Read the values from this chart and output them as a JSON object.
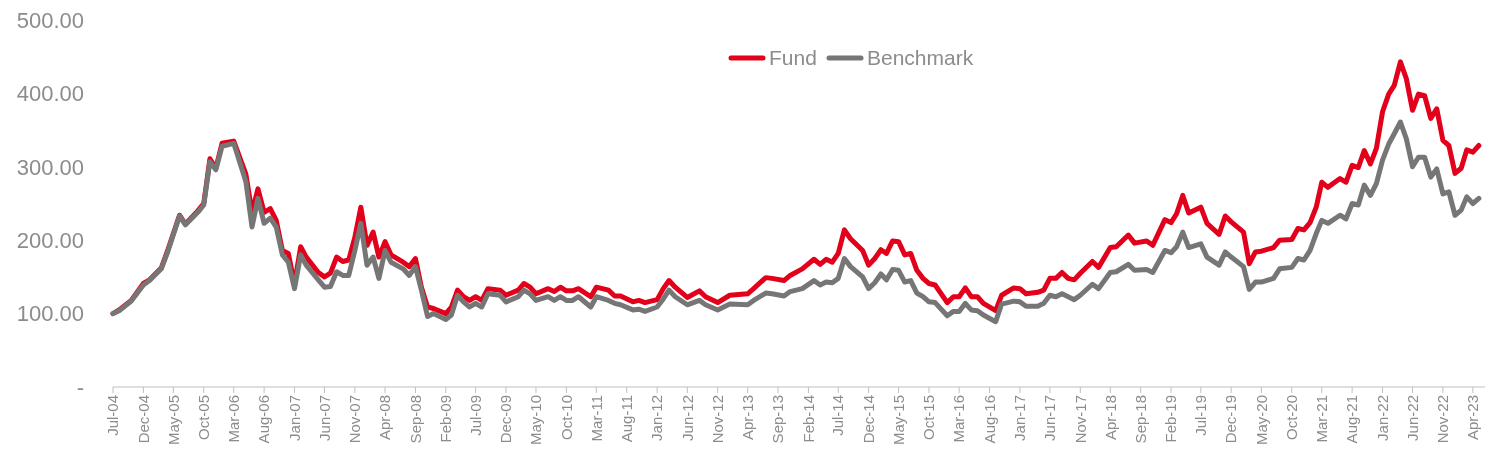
{
  "chart_data": {
    "type": "line",
    "x": [
      "2004-07",
      "2004-08",
      "2004-10",
      "2004-12",
      "2005-01",
      "2005-03",
      "2005-04",
      "2005-06",
      "2005-07",
      "2005-09",
      "2005-10",
      "2005-11",
      "2005-12",
      "2006-01",
      "2006-03",
      "2006-05",
      "2006-06",
      "2006-07",
      "2006-08",
      "2006-09",
      "2006-10",
      "2006-11",
      "2006-12",
      "2007-01",
      "2007-02",
      "2007-03",
      "2007-05",
      "2007-06",
      "2007-07",
      "2007-08",
      "2007-09",
      "2007-10",
      "2007-11",
      "2007-12",
      "2008-01",
      "2008-02",
      "2008-03",
      "2008-04",
      "2008-05",
      "2008-07",
      "2008-08",
      "2008-09",
      "2008-10",
      "2008-11",
      "2008-12",
      "2009-02",
      "2009-03",
      "2009-04",
      "2009-05",
      "2009-06",
      "2009-07",
      "2009-08",
      "2009-09",
      "2009-11",
      "2009-12",
      "2010-02",
      "2010-03",
      "2010-04",
      "2010-05",
      "2010-07",
      "2010-08",
      "2010-09",
      "2010-10",
      "2010-11",
      "2010-12",
      "2011-02",
      "2011-03",
      "2011-05",
      "2011-06",
      "2011-07",
      "2011-09",
      "2011-10",
      "2011-11",
      "2012-01",
      "2012-02",
      "2012-03",
      "2012-04",
      "2012-06",
      "2012-08",
      "2012-09",
      "2012-11",
      "2013-01",
      "2013-04",
      "2013-05",
      "2013-07",
      "2013-08",
      "2013-10",
      "2013-11",
      "2014-01",
      "2014-03",
      "2014-04",
      "2014-05",
      "2014-06",
      "2014-07",
      "2014-08",
      "2014-09",
      "2014-11",
      "2014-12",
      "2015-01",
      "2015-02",
      "2015-03",
      "2015-04",
      "2015-05",
      "2015-06",
      "2015-07",
      "2015-08",
      "2015-09",
      "2015-10",
      "2015-11",
      "2016-01",
      "2016-02",
      "2016-03",
      "2016-04",
      "2016-05",
      "2016-06",
      "2016-07",
      "2016-09",
      "2016-10",
      "2016-12",
      "2017-01",
      "2017-02",
      "2017-04",
      "2017-05",
      "2017-06",
      "2017-07",
      "2017-08",
      "2017-09",
      "2017-10",
      "2017-11",
      "2018-01",
      "2018-02",
      "2018-04",
      "2018-05",
      "2018-07",
      "2018-08",
      "2018-10",
      "2018-11",
      "2019-01",
      "2019-02",
      "2019-03",
      "2019-04",
      "2019-05",
      "2019-07",
      "2019-08",
      "2019-10",
      "2019-11",
      "2019-12",
      "2020-02",
      "2020-03",
      "2020-04",
      "2020-05",
      "2020-07",
      "2020-08",
      "2020-10",
      "2020-11",
      "2020-12",
      "2021-01",
      "2021-02",
      "2021-03",
      "2021-04",
      "2021-06",
      "2021-07",
      "2021-08",
      "2021-09",
      "2021-10",
      "2021-11",
      "2021-12",
      "2022-01",
      "2022-02",
      "2022-03",
      "2022-04",
      "2022-05",
      "2022-06",
      "2022-07",
      "2022-08",
      "2022-09",
      "2022-10",
      "2022-11",
      "2022-12",
      "2023-01",
      "2023-02",
      "2023-03",
      "2023-04",
      "2023-05"
    ],
    "series": [
      {
        "name": "Fund",
        "color": "#e2001a",
        "values": [
          100,
          105,
          118,
          141,
          146,
          162,
          185,
          234,
          222,
          240,
          250,
          311,
          298,
          332,
          335,
          290,
          238,
          270,
          238,
          243,
          227,
          186,
          182,
          140,
          191,
          177,
          156,
          150,
          155,
          177,
          171,
          173,
          204,
          245,
          193,
          211,
          177,
          198,
          180,
          170,
          164,
          175,
          136,
          109,
          107,
          100,
          109,
          132,
          123,
          118,
          123,
          118,
          134,
          132,
          125,
          132,
          141,
          136,
          127,
          134,
          130,
          136,
          131,
          131,
          134,
          123,
          136,
          132,
          124,
          124,
          116,
          118,
          115,
          119,
          134,
          145,
          136,
          122,
          131,
          123,
          115,
          125,
          127,
          134,
          149,
          148,
          145,
          152,
          161,
          174,
          167,
          174,
          170,
          182,
          214,
          202,
          186,
          166,
          175,
          187,
          182,
          199,
          198,
          180,
          182,
          159,
          148,
          141,
          139,
          115,
          123,
          123,
          135,
          123,
          123,
          114,
          104,
          125,
          135,
          134,
          127,
          129,
          132,
          148,
          148,
          156,
          148,
          146,
          155,
          171,
          163,
          190,
          191,
          207,
          196,
          199,
          193,
          228,
          224,
          236,
          261,
          237,
          245,
          223,
          208,
          233,
          225,
          211,
          168,
          184,
          185,
          190,
          200,
          201,
          216,
          214,
          224,
          245,
          279,
          272,
          284,
          279,
          302,
          299,
          322,
          304,
          325,
          375,
          399,
          411,
          443,
          420,
          377,
          399,
          397,
          366,
          379,
          336,
          329,
          291,
          298,
          323,
          320,
          329
        ]
      },
      {
        "name": "Benchmark",
        "color": "#767676",
        "values": [
          100,
          104,
          117,
          139,
          145,
          161,
          183,
          233,
          221,
          238,
          248,
          307,
          296,
          328,
          332,
          280,
          218,
          257,
          223,
          230,
          218,
          180,
          170,
          134,
          180,
          166,
          146,
          136,
          137,
          157,
          152,
          152,
          186,
          223,
          166,
          177,
          148,
          186,
          170,
          161,
          152,
          164,
          132,
          96,
          100,
          92,
          98,
          125,
          116,
          109,
          114,
          109,
          127,
          125,
          116,
          123,
          132,
          127,
          118,
          123,
          118,
          123,
          118,
          118,
          123,
          109,
          123,
          118,
          114,
          112,
          105,
          106,
          103,
          109,
          120,
          132,
          123,
          112,
          118,
          112,
          105,
          113,
          112,
          118,
          128,
          127,
          124,
          130,
          134,
          145,
          139,
          143,
          142,
          148,
          175,
          164,
          150,
          134,
          142,
          154,
          146,
          160,
          159,
          143,
          145,
          128,
          123,
          116,
          115,
          97,
          103,
          103,
          114,
          105,
          104,
          98,
          89,
          113,
          117,
          116,
          110,
          110,
          114,
          125,
          123,
          127,
          123,
          119,
          125,
          140,
          134,
          156,
          157,
          167,
          159,
          160,
          156,
          186,
          183,
          191,
          211,
          190,
          195,
          177,
          166,
          184,
          177,
          164,
          133,
          143,
          143,
          148,
          161,
          163,
          175,
          173,
          186,
          209,
          227,
          223,
          234,
          229,
          250,
          248,
          275,
          261,
          277,
          309,
          331,
          345,
          361,
          338,
          300,
          313,
          313,
          286,
          297,
          263,
          266,
          234,
          241,
          259,
          250,
          257
        ]
      }
    ],
    "xlim": [
      "2004-07",
      "2023-06"
    ],
    "xticks": [
      {
        "value": "2004-07",
        "label": "Jul-04"
      },
      {
        "value": "2004-12",
        "label": "Dec-04"
      },
      {
        "value": "2005-05",
        "label": "May-05"
      },
      {
        "value": "2005-10",
        "label": "Oct-05"
      },
      {
        "value": "2006-03",
        "label": "Mar-06"
      },
      {
        "value": "2006-08",
        "label": "Aug-06"
      },
      {
        "value": "2007-01",
        "label": "Jan-07"
      },
      {
        "value": "2007-06",
        "label": "Jun-07"
      },
      {
        "value": "2007-11",
        "label": "Nov-07"
      },
      {
        "value": "2008-04",
        "label": "Apr-08"
      },
      {
        "value": "2008-09",
        "label": "Sep-08"
      },
      {
        "value": "2009-02",
        "label": "Feb-09"
      },
      {
        "value": "2009-07",
        "label": "Jul-09"
      },
      {
        "value": "2009-12",
        "label": "Dec-09"
      },
      {
        "value": "2010-05",
        "label": "May-10"
      },
      {
        "value": "2010-10",
        "label": "Oct-10"
      },
      {
        "value": "2011-03",
        "label": "Mar-11"
      },
      {
        "value": "2011-08",
        "label": "Aug-11"
      },
      {
        "value": "2012-01",
        "label": "Jan-12"
      },
      {
        "value": "2012-06",
        "label": "Jun-12"
      },
      {
        "value": "2012-11",
        "label": "Nov-12"
      },
      {
        "value": "2013-04",
        "label": "Apr-13"
      },
      {
        "value": "2013-09",
        "label": "Sep-13"
      },
      {
        "value": "2014-02",
        "label": "Feb-14"
      },
      {
        "value": "2014-07",
        "label": "Jul-14"
      },
      {
        "value": "2014-12",
        "label": "Dec-14"
      },
      {
        "value": "2015-05",
        "label": "May-15"
      },
      {
        "value": "2015-10",
        "label": "Oct-15"
      },
      {
        "value": "2016-03",
        "label": "Mar-16"
      },
      {
        "value": "2016-08",
        "label": "Aug-16"
      },
      {
        "value": "2017-01",
        "label": "Jan-17"
      },
      {
        "value": "2017-06",
        "label": "Jun-17"
      },
      {
        "value": "2017-11",
        "label": "Nov-17"
      },
      {
        "value": "2018-04",
        "label": "Apr-18"
      },
      {
        "value": "2018-09",
        "label": "Sep-18"
      },
      {
        "value": "2019-02",
        "label": "Feb-19"
      },
      {
        "value": "2019-07",
        "label": "Jul-19"
      },
      {
        "value": "2019-12",
        "label": "Dec-19"
      },
      {
        "value": "2020-05",
        "label": "May-20"
      },
      {
        "value": "2020-10",
        "label": "Oct-20"
      },
      {
        "value": "2021-03",
        "label": "Mar-21"
      },
      {
        "value": "2021-08",
        "label": "Aug-21"
      },
      {
        "value": "2022-01",
        "label": "Jan-22"
      },
      {
        "value": "2022-06",
        "label": "Jun-22"
      },
      {
        "value": "2022-11",
        "label": "Nov-22"
      },
      {
        "value": "2023-04",
        "label": "Apr-23"
      }
    ],
    "ylim": [
      0,
      500
    ],
    "yticks": [
      {
        "value": 0,
        "label": "-"
      },
      {
        "value": 100,
        "label": "100.00"
      },
      {
        "value": 200,
        "label": "200.00"
      },
      {
        "value": 300,
        "label": "300.00"
      },
      {
        "value": 400,
        "label": "400.00"
      },
      {
        "value": 500,
        "label": "500.00"
      }
    ],
    "legend": "top",
    "grid": false,
    "line_style": "solid",
    "marker": "none"
  }
}
